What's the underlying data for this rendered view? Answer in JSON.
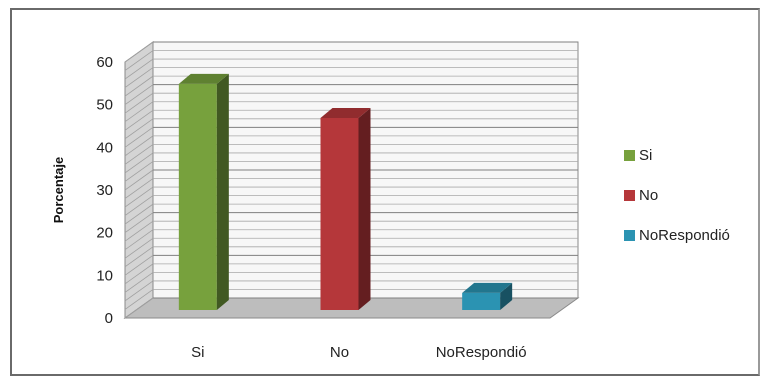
{
  "chart_data": {
    "type": "bar",
    "categories": [
      "Si",
      "No",
      "NoRespondió"
    ],
    "values": [
      53,
      45,
      4
    ],
    "ylabel": "Porcentaje",
    "xlabel": "",
    "ylim": [
      0,
      60
    ],
    "yticks": [
      0,
      10,
      20,
      30,
      40,
      50,
      60
    ],
    "grid": true,
    "legend": "right",
    "colors": [
      "#77a13d",
      "#b5373a",
      "#2b93b2"
    ],
    "legend_entries": [
      "Si",
      "No",
      "NoRespondió"
    ]
  }
}
